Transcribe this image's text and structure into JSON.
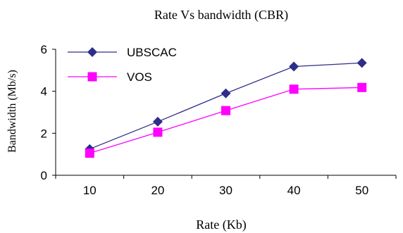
{
  "chart_data": {
    "type": "line",
    "title": "Rate Vs bandwidth (CBR)",
    "xlabel": "Rate (Kb)",
    "ylabel": "Bandwidth (Mb/s)",
    "categories": [
      "10",
      "20",
      "30",
      "40",
      "50"
    ],
    "y_ticks": [
      "0",
      "2",
      "4",
      "6"
    ],
    "ylim": [
      0,
      6
    ],
    "grid": false,
    "legend_position": "top-left",
    "series": [
      {
        "name": "UBSCAC",
        "values": [
          1.25,
          2.55,
          3.9,
          5.18,
          5.35
        ],
        "color": "#2e2e8a",
        "marker": "diamond"
      },
      {
        "name": "VOS",
        "values": [
          1.05,
          2.05,
          3.08,
          4.1,
          4.18
        ],
        "color": "#ff00ff",
        "marker": "square"
      }
    ]
  }
}
